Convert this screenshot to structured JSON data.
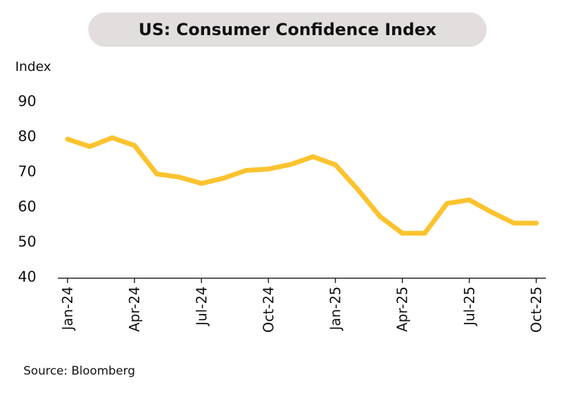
{
  "title": "US: Consumer Confidence Index",
  "source": "Source: Bloomberg",
  "colors": {
    "line": "#fcc32f",
    "axis": "#222222",
    "title_bg": "#e3dede"
  },
  "chart_data": {
    "type": "line",
    "title": "US: Consumer Confidence Index",
    "ylabel": "Index",
    "xlabel": "",
    "ylim": [
      40,
      90
    ],
    "yticks": [
      40,
      50,
      60,
      70,
      80,
      90
    ],
    "grid": false,
    "legend": "none",
    "x_tick_labels": [
      {
        "label": "Jan-24",
        "index": 0
      },
      {
        "label": "Apr-24",
        "index": 3
      },
      {
        "label": "Jul-24",
        "index": 6
      },
      {
        "label": "Oct-24",
        "index": 9
      },
      {
        "label": "Jan-25",
        "index": 12
      },
      {
        "label": "Apr-25",
        "index": 15
      },
      {
        "label": "Jul-25",
        "index": 18
      },
      {
        "label": "Oct-25",
        "index": 21
      }
    ],
    "x": [
      "Jan-24",
      "Feb-24",
      "Mar-24",
      "Apr-24",
      "May-24",
      "Jun-24",
      "Jul-24",
      "Aug-24",
      "Sep-24",
      "Oct-24",
      "Nov-24",
      "Dec-24",
      "Jan-25",
      "Feb-25",
      "Mar-25",
      "Apr-25",
      "May-25",
      "Jun-25",
      "Jul-25",
      "Aug-25",
      "Sep-25",
      "Oct-25"
    ],
    "series": [
      {
        "values": [
          79.0,
          76.9,
          79.4,
          77.2,
          69.1,
          68.2,
          66.4,
          67.9,
          70.1,
          70.5,
          71.8,
          74.0,
          71.7,
          64.7,
          57.0,
          52.2,
          52.2,
          60.7,
          61.7,
          58.2,
          55.1,
          55.1
        ]
      }
    ]
  }
}
